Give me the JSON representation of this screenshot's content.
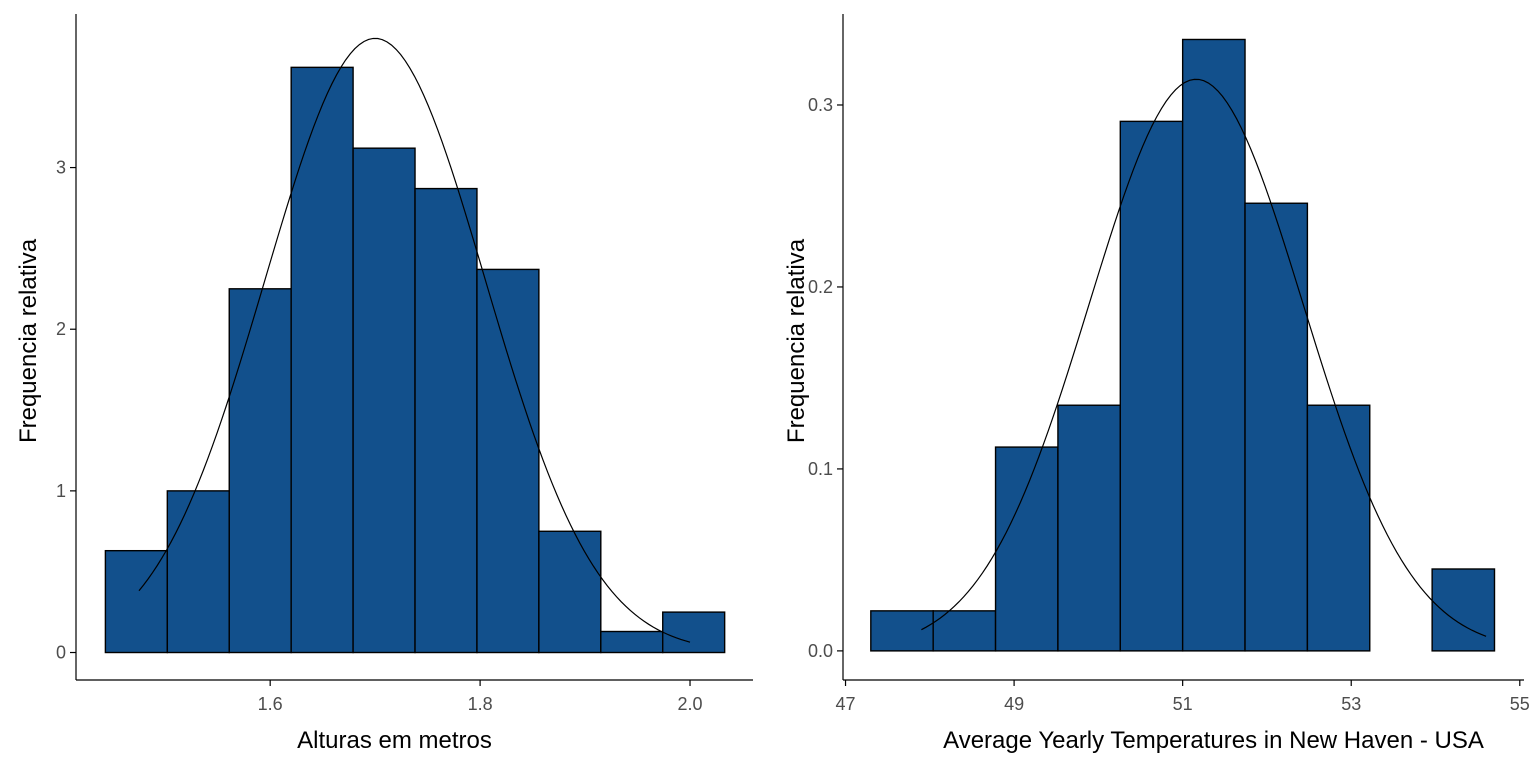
{
  "colors": {
    "bar_fill": "#12508c",
    "bar_stroke": "#000000"
  },
  "chart_data": [
    {
      "type": "bar",
      "subtype": "histogram",
      "xlabel": "Alturas em metros",
      "ylabel": "Frequencia relativa",
      "xlim": [
        1.415,
        2.06
      ],
      "ylim": [
        -0.17,
        3.95
      ],
      "xticks": [
        1.6,
        1.8,
        2.0
      ],
      "xtick_labels": [
        "1.6",
        "1.8",
        "2.0"
      ],
      "yticks": [
        0,
        1,
        2,
        3
      ],
      "ytick_labels": [
        "0",
        "1",
        "2",
        "3"
      ],
      "bin_edges": [
        1.443,
        1.502,
        1.561,
        1.62,
        1.679,
        1.738,
        1.797,
        1.856,
        1.915,
        1.974,
        2.033
      ],
      "values": [
        0.63,
        1.0,
        2.25,
        3.62,
        3.12,
        2.87,
        2.37,
        0.75,
        0.13,
        0.25
      ],
      "curve": {
        "type": "normal_density",
        "mean": 1.7,
        "sd": 0.105,
        "x_range": [
          1.475,
          2.0
        ]
      },
      "grid": false,
      "legend": false
    },
    {
      "type": "bar",
      "subtype": "histogram",
      "xlabel": "Average Yearly Temperatures in New Haven - USA",
      "ylabel": "Frequencia relativa",
      "xlim": [
        46.97,
        55.05
      ],
      "ylim": [
        -0.016,
        0.35
      ],
      "xticks": [
        47,
        49,
        51,
        53,
        55
      ],
      "xtick_labels": [
        "47",
        "49",
        "51",
        "53",
        "55"
      ],
      "yticks": [
        0.0,
        0.1,
        0.2,
        0.3
      ],
      "ytick_labels": [
        "0.0",
        "0.1",
        "0.2",
        "0.3"
      ],
      "bin_edges": [
        47.3,
        48.04,
        48.78,
        49.52,
        50.26,
        51.0,
        51.74,
        52.48,
        53.22,
        53.96,
        54.7
      ],
      "values": [
        0.022,
        0.022,
        0.112,
        0.135,
        0.291,
        0.336,
        0.246,
        0.135,
        0.0,
        0.045
      ],
      "curve": {
        "type": "normal_density",
        "mean": 51.16,
        "sd": 1.27,
        "x_range": [
          47.9,
          54.6
        ]
      },
      "grid": false,
      "legend": false
    }
  ]
}
